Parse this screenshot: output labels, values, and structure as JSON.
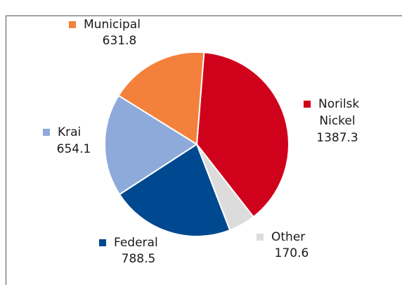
{
  "chart_data": {
    "type": "pie",
    "categories": [
      "Norilsk Nickel",
      "Other",
      "Federal",
      "Krai",
      "Municipal"
    ],
    "values": [
      1387.3,
      170.6,
      788.5,
      654.1,
      631.8
    ],
    "colors": [
      "#d0021b",
      "#dcdcdc",
      "#004990",
      "#8eaadb",
      "#f4813b"
    ]
  }
}
